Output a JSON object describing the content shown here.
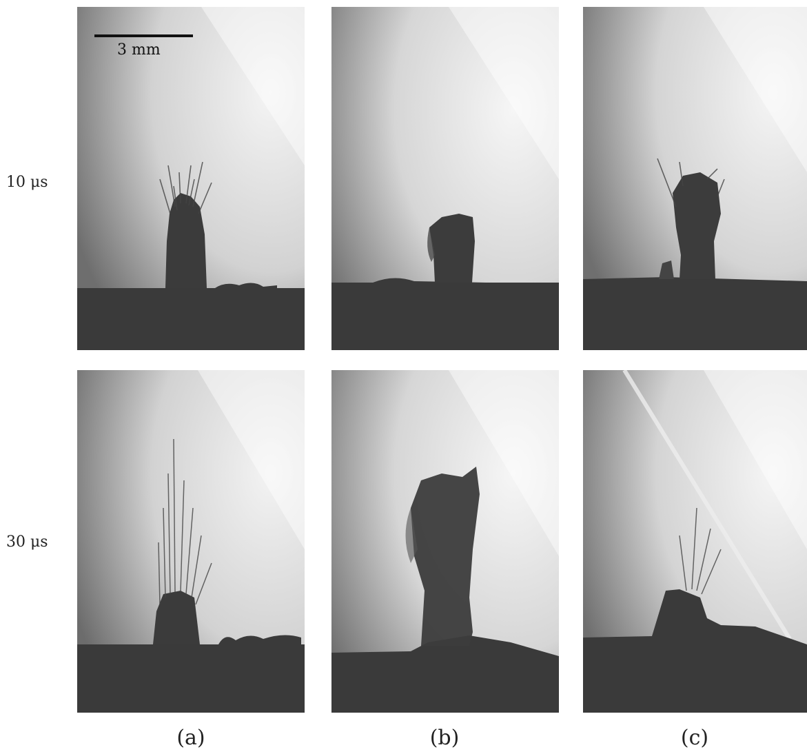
{
  "rows": [
    {
      "label": "10 μs"
    },
    {
      "label": "30 μs"
    }
  ],
  "columns": [
    {
      "label": "(a)"
    },
    {
      "label": "(b)"
    },
    {
      "label": "(c)"
    }
  ],
  "scale_bar": {
    "label": "3 mm"
  }
}
